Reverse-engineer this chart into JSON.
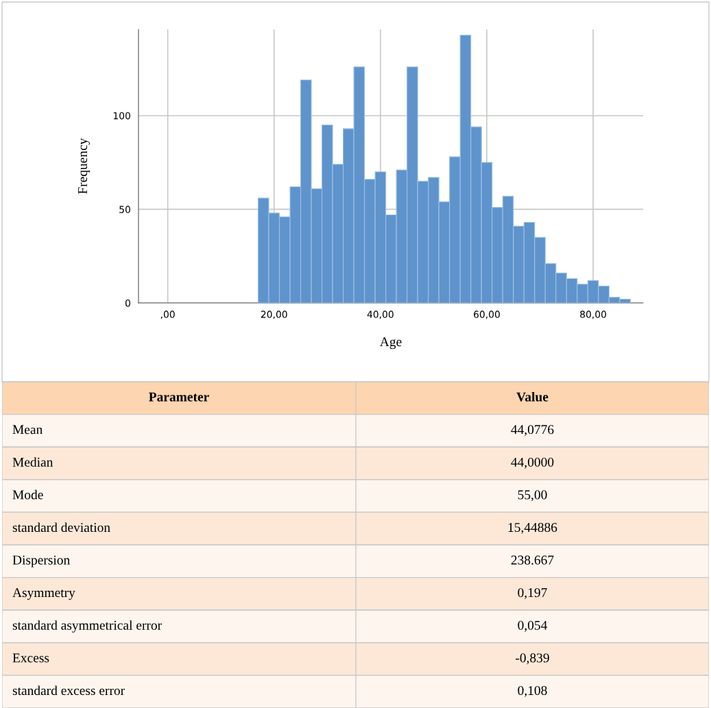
{
  "chart_data": [
    {
      "type": "histogram",
      "xlabel": "Age",
      "ylabel": "Frequency",
      "color": "#5f93cc",
      "bins": [
        17,
        19,
        21,
        23,
        25,
        27,
        29,
        31,
        33,
        35,
        37,
        39,
        41,
        43,
        45,
        47,
        49,
        51,
        53,
        55,
        57,
        59,
        61,
        63,
        65,
        67,
        69,
        71,
        73,
        75,
        77,
        79,
        81,
        83,
        85,
        87
      ],
      "values": [
        56,
        48,
        46,
        62,
        119,
        61,
        95,
        74,
        93,
        126,
        66,
        70,
        47,
        71,
        126,
        65,
        67,
        54,
        78,
        143,
        94,
        75,
        51,
        57,
        41,
        43,
        35,
        21,
        16,
        13,
        10,
        12,
        9,
        3,
        2
      ],
      "xlim": [
        -5.5,
        89.4
      ],
      "ylim": [
        0,
        146
      ],
      "xticks": [
        {
          "value": 0,
          "label": ",00"
        },
        {
          "value": 20,
          "label": "20,00"
        },
        {
          "value": 40,
          "label": "40,00"
        },
        {
          "value": 60,
          "label": "60,00"
        },
        {
          "value": 80,
          "label": "80,00"
        }
      ],
      "yticks": [
        0,
        50,
        100
      ],
      "grid": true
    },
    {
      "type": "other",
      "categories": [
        "Parameter",
        "Value"
      ],
      "y_categories": [
        "Mean",
        "Median",
        "Mode",
        "standard deviation",
        "Dispersion",
        "Asymmetry",
        "standard asymmetrical error",
        "Excess",
        "standard excess error"
      ],
      "cell_labels": [
        [
          "44,0776"
        ],
        [
          "44,0000"
        ],
        [
          "55,00"
        ],
        [
          "15,44886"
        ],
        [
          "238.667"
        ],
        [
          "0,197"
        ],
        [
          "0,054"
        ],
        [
          "-0,839"
        ],
        [
          "0,108"
        ]
      ]
    }
  ]
}
